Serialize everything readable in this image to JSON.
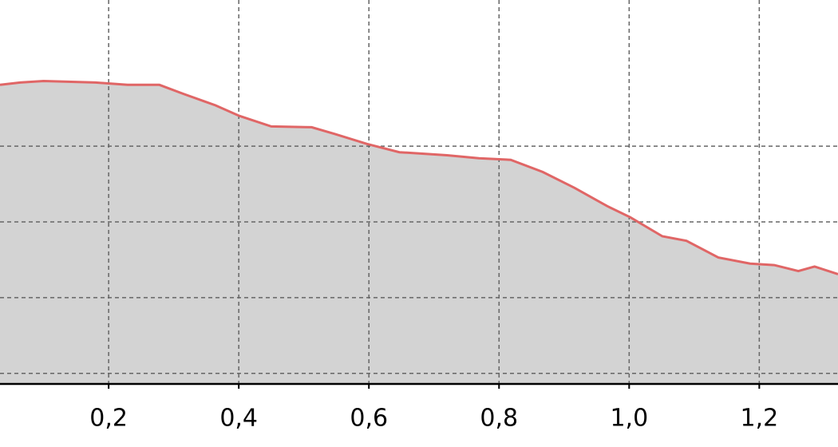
{
  "chart_data": {
    "type": "area",
    "x": [
      0.033,
      0.064,
      0.1,
      0.18,
      0.229,
      0.278,
      0.315,
      0.364,
      0.401,
      0.45,
      0.512,
      0.548,
      0.597,
      0.647,
      0.72,
      0.769,
      0.818,
      0.867,
      0.916,
      0.966,
      1.002,
      1.051,
      1.088,
      1.137,
      1.186,
      1.223,
      1.26,
      1.285,
      1.321
    ],
    "values": [
      3.81,
      3.84,
      3.86,
      3.84,
      3.81,
      3.81,
      3.69,
      3.54,
      3.4,
      3.26,
      3.25,
      3.16,
      3.03,
      2.92,
      2.88,
      2.84,
      2.82,
      2.66,
      2.45,
      2.21,
      2.06,
      1.81,
      1.75,
      1.53,
      1.45,
      1.43,
      1.35,
      1.41,
      1.31
    ],
    "color": "#e06666",
    "fill": "#d3d3d3",
    "xlim": [
      0.033,
      1.321
    ],
    "xticks": [
      {
        "value": 0.2,
        "label": "0,2"
      },
      {
        "value": 0.4,
        "label": "0,4"
      },
      {
        "value": 0.6,
        "label": "0,6"
      },
      {
        "value": 0.8,
        "label": "0,8"
      },
      {
        "value": 1.0,
        "label": "1,0"
      },
      {
        "value": 1.2,
        "label": "1,2"
      }
    ],
    "ylim": [
      -0.14,
      4.93
    ],
    "yticks": [
      0,
      1,
      2,
      3
    ],
    "grid": true
  }
}
